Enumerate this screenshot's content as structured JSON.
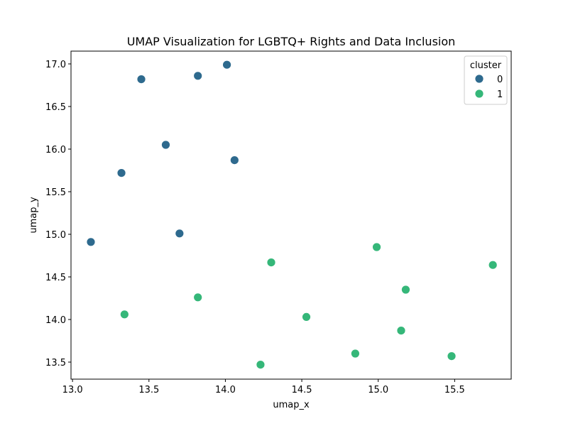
{
  "chart_data": {
    "type": "scatter",
    "title": "UMAP Visualization for LGBTQ+ Rights and Data Inclusion",
    "xlabel": "umap_x",
    "ylabel": "umap_y",
    "xlim": [
      12.99,
      15.87
    ],
    "ylim": [
      13.3,
      17.15
    ],
    "xticks": [
      13.0,
      13.5,
      14.0,
      14.5,
      15.0,
      15.5
    ],
    "yticks": [
      13.5,
      14.0,
      14.5,
      15.0,
      15.5,
      16.0,
      16.5,
      17.0
    ],
    "grid": false,
    "legend": {
      "title": "cluster",
      "placement": "top-right"
    },
    "series": [
      {
        "name": "0",
        "color": "#2e6a8e",
        "points": [
          {
            "x": 13.12,
            "y": 14.91
          },
          {
            "x": 13.32,
            "y": 15.72
          },
          {
            "x": 13.45,
            "y": 16.82
          },
          {
            "x": 13.61,
            "y": 16.05
          },
          {
            "x": 13.7,
            "y": 15.01
          },
          {
            "x": 13.82,
            "y": 16.86
          },
          {
            "x": 14.01,
            "y": 16.99
          },
          {
            "x": 14.06,
            "y": 15.87
          }
        ]
      },
      {
        "name": "1",
        "color": "#35b779",
        "points": [
          {
            "x": 13.34,
            "y": 14.06
          },
          {
            "x": 13.82,
            "y": 14.26
          },
          {
            "x": 14.23,
            "y": 13.47
          },
          {
            "x": 14.3,
            "y": 14.67
          },
          {
            "x": 14.53,
            "y": 14.03
          },
          {
            "x": 14.85,
            "y": 13.6
          },
          {
            "x": 14.99,
            "y": 14.85
          },
          {
            "x": 15.15,
            "y": 13.87
          },
          {
            "x": 15.18,
            "y": 14.35
          },
          {
            "x": 15.48,
            "y": 13.57
          },
          {
            "x": 15.75,
            "y": 14.64
          }
        ]
      }
    ]
  }
}
